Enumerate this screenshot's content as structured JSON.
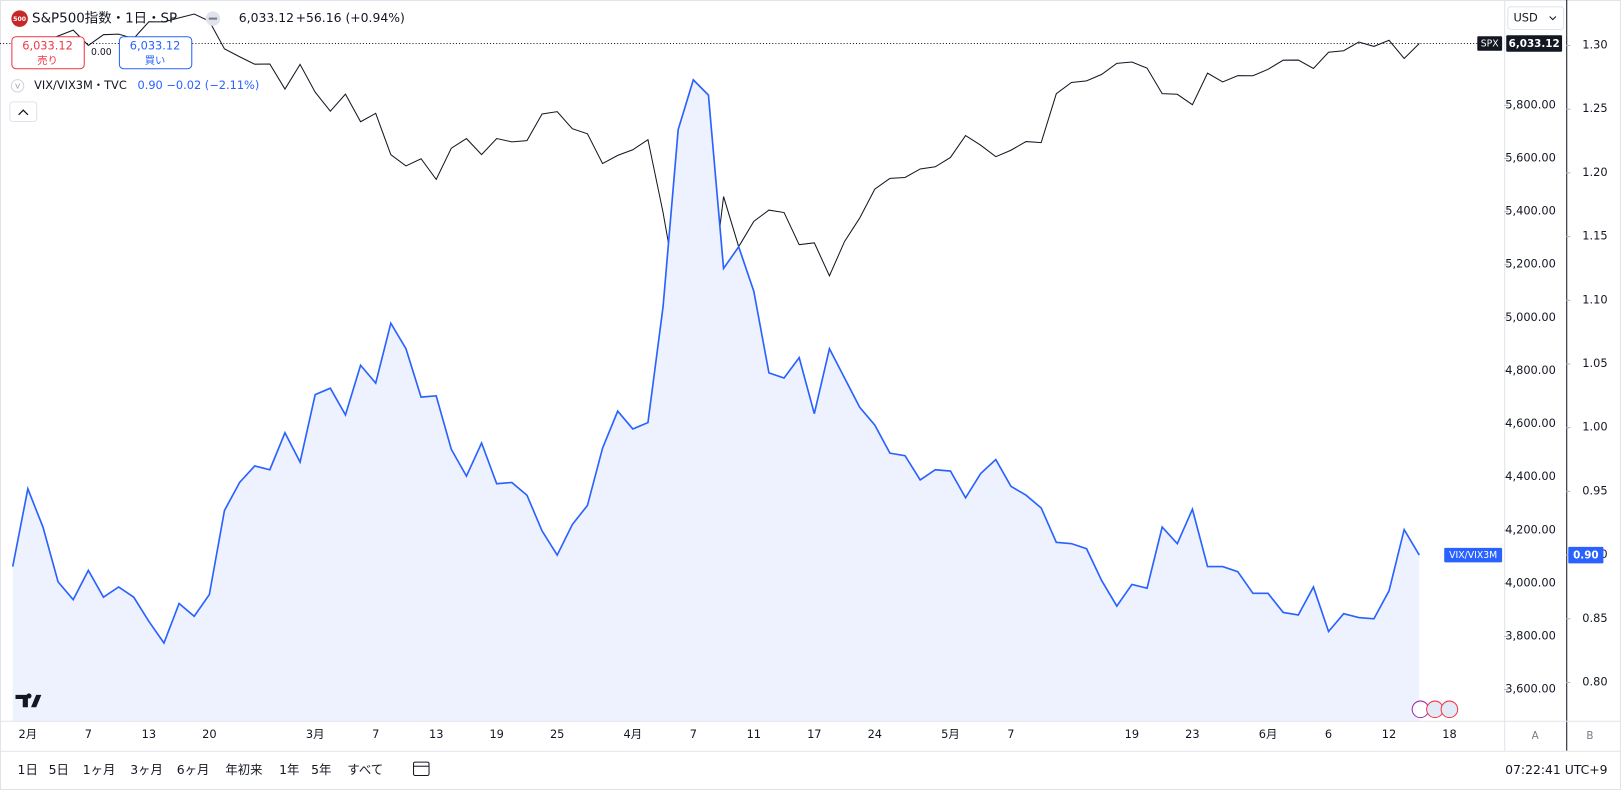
{
  "chart_data": {
    "type": "line",
    "legend": {
      "logo": "500",
      "title": "S&P500指数・1日・SP",
      "last": "6,033.12",
      "change": "+56.16 (+0.94%)",
      "sell_label": "売り",
      "buy_label": "買い",
      "spread": "0.00",
      "compare_title": "VIX/VIX3M・TVC",
      "compare_values": "0.90 −0.02 (−2.11%)",
      "compare_icon": "V"
    },
    "currency": "USD",
    "last_price_labels": [
      "6,033.12",
      "0.90"
    ],
    "categories": [
      null,
      "2月",
      null,
      null,
      null,
      "7",
      null,
      null,
      null,
      "13",
      null,
      null,
      null,
      "20",
      null,
      null,
      null,
      null,
      null,
      null,
      "3月",
      null,
      null,
      null,
      "7",
      null,
      null,
      null,
      "13",
      null,
      null,
      null,
      "19",
      null,
      null,
      null,
      "25",
      null,
      null,
      null,
      null,
      "4月",
      null,
      null,
      null,
      "7",
      null,
      null,
      null,
      "11",
      null,
      null,
      null,
      "17",
      null,
      null,
      null,
      "24",
      null,
      null,
      null,
      null,
      "5月",
      null,
      null,
      null,
      "7",
      null,
      null,
      null,
      null,
      null,
      null,
      null,
      "19",
      null,
      null,
      null,
      "23",
      null,
      null,
      null,
      null,
      "6月",
      null,
      null,
      null,
      "6",
      null,
      null,
      null,
      "12",
      null,
      null,
      null,
      "18"
    ],
    "series": [
      {
        "name": "SPX",
        "color": "#131722",
        "values": [
          6040.53,
          5994.57,
          6037.88,
          6061.48,
          6083.57,
          6025.99,
          6066.44,
          6068.5,
          6051.97,
          6115.07,
          6114.63,
          6129.58,
          6144.15,
          6117.52,
          6013.13,
          5983.25,
          5955.25,
          5956.06,
          5861.57,
          5954.5,
          5849.72,
          5778.15,
          5842.63,
          5738.52,
          5770.2,
          5614.56,
          5572.07,
          5599.3,
          5521.52,
          5638.94,
          5675.12,
          5614.66,
          5675.29,
          5662.89,
          5667.56,
          5767.57,
          5776.65,
          5712.2,
          5693.31,
          5580.94,
          5611.85,
          5633.07,
          5670.97,
          5396.52,
          5074.08,
          5062.25,
          4982.77,
          5456.9,
          5268.05,
          5363.36,
          5405.97,
          5396.63,
          5275.7,
          5282.7,
          5158.2,
          5287.76,
          5375.86,
          5484.77,
          5525.21,
          5528.75,
          5560.83,
          5569.06,
          5604.14,
          5686.67,
          5650.38,
          5606.91,
          5631.28,
          5663.94,
          5659.91,
          5844.19,
          5886.55,
          5892.58,
          5916.93,
          5958.38,
          5963.6,
          5940.46,
          5844.61,
          5842.01,
          5802.82,
          5921.54,
          5888.55,
          5912.17,
          5911.69,
          5935.94,
          5970.37,
          5970.81,
          5939.3,
          6000.36,
          6005.88,
          6038.81,
          6022.24,
          6045.26,
          5976.97,
          6033.12,
          null,
          null
        ]
      },
      {
        "name": "VIX/VIX3M",
        "color": "#2962ff",
        "axis": "y2",
        "area": true,
        "fill": "#eef2fe",
        "values": [
          0.891,
          0.952,
          0.922,
          0.879,
          0.865,
          0.888,
          0.867,
          0.875,
          0.867,
          0.848,
          0.831,
          0.862,
          0.852,
          0.869,
          0.935,
          0.957,
          0.97,
          0.967,
          0.996,
          0.973,
          1.026,
          1.031,
          1.01,
          1.049,
          1.035,
          1.082,
          1.062,
          1.024,
          1.025,
          0.983,
          0.962,
          0.988,
          0.956,
          0.957,
          0.947,
          0.919,
          0.9,
          0.924,
          0.939,
          0.984,
          1.013,
          0.999,
          1.004,
          1.095,
          1.234,
          1.273,
          1.261,
          1.125,
          1.142,
          1.107,
          1.043,
          1.039,
          1.055,
          1.011,
          1.062,
          1.039,
          1.016,
          1.002,
          0.98,
          0.978,
          0.959,
          0.967,
          0.966,
          0.945,
          0.964,
          0.975,
          0.954,
          0.947,
          0.937,
          0.91,
          0.909,
          0.905,
          0.88,
          0.86,
          0.877,
          0.874,
          0.922,
          0.909,
          0.936,
          0.891,
          0.891,
          0.887,
          0.87,
          0.87,
          0.855,
          0.853,
          0.875,
          0.84,
          0.854,
          0.851,
          0.85,
          0.872,
          0.92,
          0.9,
          null,
          null
        ]
      }
    ],
    "ylim": [
      3483,
      6197
    ],
    "yticks": [
      {
        "value": 3600,
        "label": "3,600.00"
      },
      {
        "value": 3800,
        "label": "3,800.00"
      },
      {
        "value": 4000,
        "label": "4,000.00"
      },
      {
        "value": 4200,
        "label": "4,200.00"
      },
      {
        "value": 4400,
        "label": "4,400.00"
      },
      {
        "value": 4600,
        "label": "4,600.00"
      },
      {
        "value": 4800,
        "label": "4,800.00"
      },
      {
        "value": 5000,
        "label": "5,000.00"
      },
      {
        "value": 5200,
        "label": "5,200.00"
      },
      {
        "value": 5400,
        "label": "5,400.00"
      },
      {
        "value": 5600,
        "label": "5,600.00"
      },
      {
        "value": 5800,
        "label": "5,800.00"
      }
    ],
    "y2lim": [
      0.77,
      1.3357
    ],
    "y2ticks": [
      {
        "value": 0.8,
        "label": "0.80"
      },
      0.85,
      {
        "value": 0.9,
        "label": "0.90"
      },
      0.95,
      {
        "value": 1,
        "label": "1.00"
      },
      1.05,
      {
        "value": 1.1,
        "label": "1.10"
      },
      1.15,
      {
        "value": 1.2,
        "label": "1.20"
      },
      1.25,
      {
        "value": 1.3,
        "label": "1.30"
      }
    ],
    "grid": false,
    "axis_buttons": [
      "A",
      "B"
    ]
  },
  "toolbar": {
    "ranges": [
      "1日",
      "5日",
      "1ヶ月",
      "3ヶ月",
      "6ヶ月",
      "年初来",
      "1年",
      "5年",
      "すべて"
    ],
    "clock": "07:22:41 UTC+9"
  }
}
